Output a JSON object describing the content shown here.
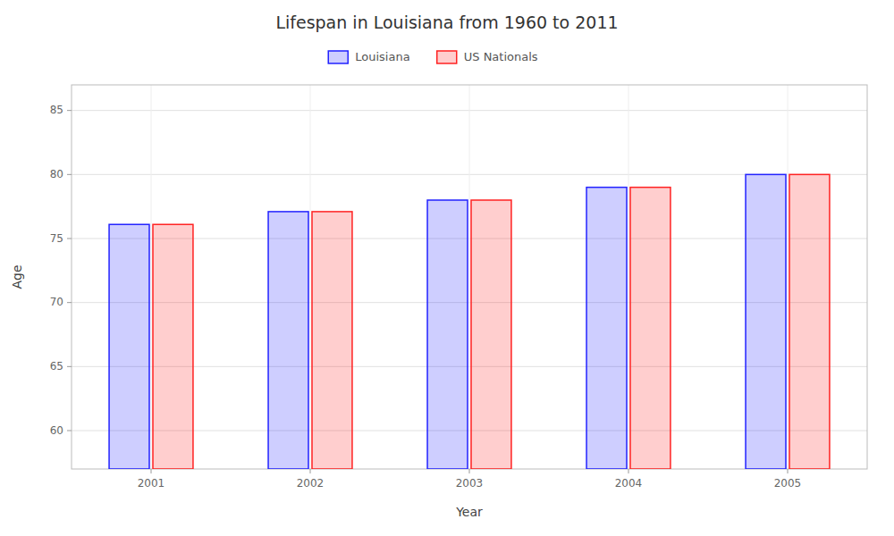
{
  "chart_data": {
    "type": "bar",
    "title": "Lifespan in Louisiana from 1960 to 2011",
    "xlabel": "Year",
    "ylabel": "Age",
    "categories": [
      "2001",
      "2002",
      "2003",
      "2004",
      "2005"
    ],
    "series": [
      {
        "name": "Louisiana",
        "color": "#2222ff",
        "values": [
          76.1,
          77.1,
          78.0,
          79.0,
          80.0
        ]
      },
      {
        "name": "US Nationals",
        "color": "#ff2222",
        "values": [
          76.1,
          77.1,
          78.0,
          79.0,
          80.0
        ]
      }
    ],
    "ylim": [
      57,
      87
    ],
    "yticks": [
      60,
      65,
      70,
      75,
      80,
      85
    ],
    "grid": true,
    "legend": "top"
  }
}
